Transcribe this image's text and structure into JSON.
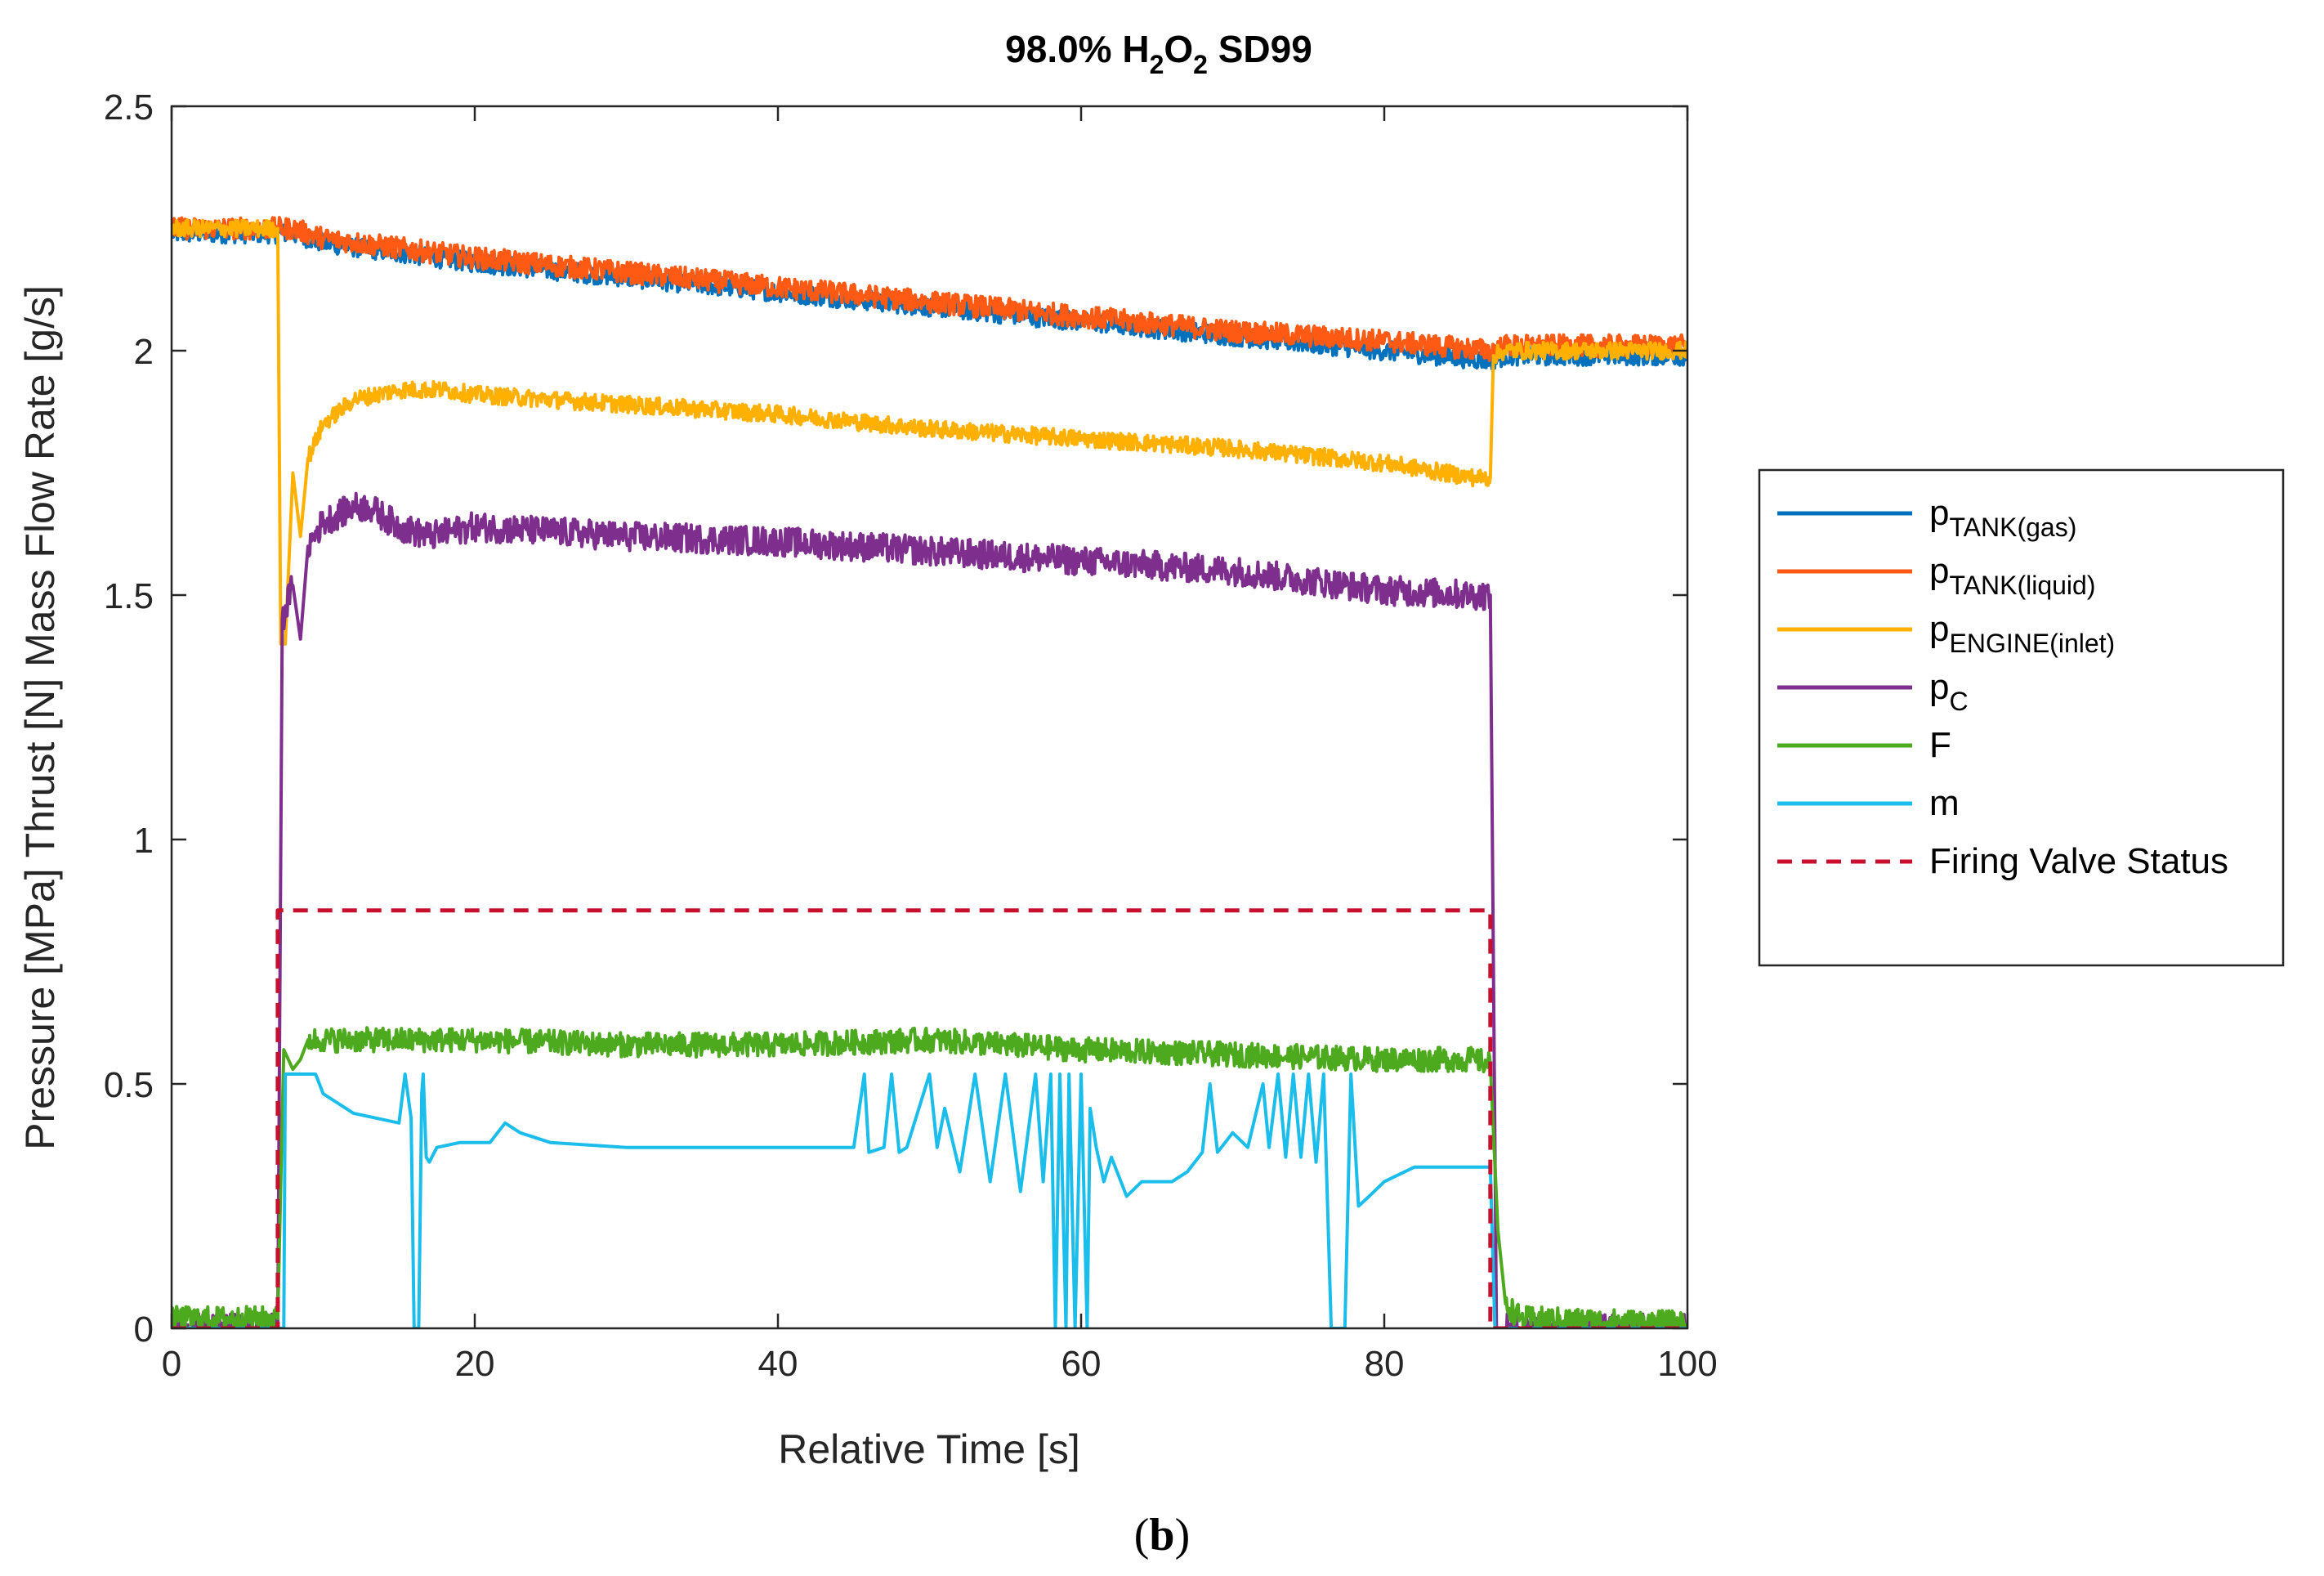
{
  "figure": {
    "caption_open": "(",
    "caption_letter": "b",
    "caption_close": ")"
  },
  "chart_data": {
    "type": "line",
    "title": {
      "prefix": "98.0% H",
      "sub1": "2",
      "mid": "O",
      "sub2": "2",
      "suffix": " SD99"
    },
    "xlabel": "Relative Time [s]",
    "ylabel": "Pressure [MPa] Thrust [N] Mass Flow Rate [g/s]",
    "xlim": [
      0,
      100
    ],
    "ylim": [
      0,
      2.5
    ],
    "xticks": [
      0,
      20,
      40,
      60,
      80,
      100
    ],
    "xtick_labels": [
      "0",
      "20",
      "40",
      "60",
      "80",
      "100"
    ],
    "yticks": [
      0,
      0.5,
      1,
      1.5,
      2,
      2.5
    ],
    "ytick_labels": [
      "0",
      "0.5",
      "1",
      "1.5",
      "2",
      "2.5"
    ],
    "grid": false,
    "legend_position": "outside-right",
    "series": [
      {
        "id": "p_tank_gas",
        "legend_main": "p",
        "legend_sub": "TANK(gas)",
        "color": "#0072BD",
        "style": "solid",
        "x": [
          0,
          7,
          8,
          10,
          20,
          30,
          40,
          50,
          60,
          70,
          80,
          87,
          88,
          100
        ],
        "y": [
          2.24,
          2.24,
          2.24,
          2.22,
          2.18,
          2.15,
          2.12,
          2.09,
          2.06,
          2.03,
          2.0,
          1.98,
          1.99,
          1.99
        ],
        "noise": 0.008
      },
      {
        "id": "p_tank_liquid",
        "legend_main": "p",
        "legend_sub": "TANK(liquid)",
        "color": "#FF5A14",
        "style": "solid",
        "x": [
          0,
          7,
          8,
          10,
          20,
          30,
          40,
          50,
          60,
          70,
          80,
          87,
          88,
          100
        ],
        "y": [
          2.25,
          2.25,
          2.25,
          2.23,
          2.19,
          2.16,
          2.13,
          2.1,
          2.07,
          2.04,
          2.02,
          2.0,
          2.01,
          2.01
        ],
        "noise": 0.009
      },
      {
        "id": "p_engine_inlet",
        "legend_main": "p",
        "legend_sub": "ENGINE(inlet)",
        "color": "#FFB000",
        "style": "solid",
        "x": [
          0,
          7.0,
          7.2,
          7.5,
          8.0,
          8.5,
          9.0,
          10,
          12,
          15,
          18,
          20,
          30,
          40,
          50,
          60,
          70,
          80,
          86,
          87.0,
          87.2,
          88,
          100
        ],
        "y": [
          2.25,
          2.25,
          1.4,
          1.4,
          1.75,
          1.62,
          1.78,
          1.85,
          1.9,
          1.92,
          1.92,
          1.91,
          1.89,
          1.87,
          1.84,
          1.82,
          1.8,
          1.77,
          1.74,
          1.74,
          1.99,
          2.0,
          2.0
        ],
        "noise": 0.007
      },
      {
        "id": "p_c",
        "legend_main": "p",
        "legend_sub": "C",
        "color": "#7E2F8E",
        "style": "solid",
        "x": [
          0,
          7.0,
          7.3,
          8.0,
          8.5,
          9.0,
          10,
          12,
          13,
          15,
          17,
          20,
          30,
          40,
          50,
          60,
          70,
          80,
          86,
          87.0,
          87.4,
          88,
          100
        ],
        "y": [
          0.0,
          0.0,
          1.45,
          1.52,
          1.41,
          1.6,
          1.65,
          1.68,
          1.68,
          1.64,
          1.62,
          1.64,
          1.62,
          1.61,
          1.59,
          1.57,
          1.55,
          1.51,
          1.5,
          1.5,
          0.0,
          0.0,
          0.0
        ],
        "noise": 0.012
      },
      {
        "id": "f",
        "legend_main": "F",
        "legend_sub": "",
        "color": "#4DAA1F",
        "style": "solid",
        "x": [
          0,
          7.0,
          7.4,
          8.0,
          8.5,
          9.0,
          10,
          20,
          30,
          40,
          50,
          60,
          70,
          80,
          86,
          87.0,
          87.5,
          88,
          89,
          100
        ],
        "y": [
          0.02,
          0.02,
          0.57,
          0.53,
          0.55,
          0.59,
          0.59,
          0.59,
          0.58,
          0.58,
          0.59,
          0.57,
          0.56,
          0.55,
          0.55,
          0.54,
          0.2,
          0.05,
          0.02,
          0.01
        ],
        "noise": 0.01
      },
      {
        "id": "m",
        "legend_main": "m",
        "legend_sub": "",
        "color": "#1BBDEB",
        "style": "solid",
        "x": [
          0,
          7.4,
          7.5,
          9.5,
          10,
          12,
          15,
          15.4,
          15.8,
          16.0,
          16.1,
          16.3,
          16.5,
          16.6,
          16.8,
          17,
          17.5,
          19,
          21,
          22,
          23,
          25,
          30,
          40,
          45,
          45.7,
          46,
          47,
          47.5,
          48,
          48.5,
          50,
          50.5,
          51,
          52,
          53,
          54,
          55,
          56,
          57,
          57.5,
          58,
          58.3,
          58.6,
          59,
          59.2,
          59.6,
          60,
          60.4,
          60.6,
          61,
          61.5,
          62,
          63,
          64,
          66,
          67,
          68,
          68.5,
          69,
          69.5,
          70,
          71,
          72,
          72.4,
          73,
          73.5,
          74,
          74.5,
          75,
          75.5,
          76,
          76.5,
          77,
          77.4,
          77.8,
          78.3,
          79,
          80,
          82,
          84,
          86,
          87,
          87.3,
          100
        ],
        "y": [
          0.0,
          0.0,
          0.52,
          0.52,
          0.48,
          0.44,
          0.42,
          0.52,
          0.43,
          0.0,
          0.0,
          0.0,
          0.48,
          0.52,
          0.35,
          0.34,
          0.37,
          0.38,
          0.38,
          0.42,
          0.4,
          0.38,
          0.37,
          0.37,
          0.37,
          0.52,
          0.36,
          0.37,
          0.52,
          0.36,
          0.37,
          0.52,
          0.37,
          0.45,
          0.32,
          0.52,
          0.3,
          0.52,
          0.28,
          0.52,
          0.3,
          0.52,
          0.0,
          0.52,
          0.0,
          0.52,
          0.0,
          0.52,
          0.0,
          0.45,
          0.37,
          0.3,
          0.35,
          0.27,
          0.3,
          0.3,
          0.32,
          0.36,
          0.5,
          0.36,
          0.38,
          0.4,
          0.37,
          0.5,
          0.37,
          0.52,
          0.35,
          0.52,
          0.35,
          0.52,
          0.34,
          0.52,
          0.0,
          0.0,
          0.0,
          0.52,
          0.25,
          0.27,
          0.3,
          0.33,
          0.33,
          0.33,
          0.33,
          0.0,
          0.0
        ],
        "noise": 0
      },
      {
        "id": "firing_valve_status",
        "legend_main": "Firing Valve Status",
        "legend_sub": "",
        "color": "#C8102E",
        "style": "dashed",
        "x": [
          0,
          7.0,
          7.0,
          87.0,
          87.0,
          100
        ],
        "y": [
          0.0,
          0.0,
          0.855,
          0.855,
          0.0,
          0.0
        ],
        "noise": 0
      }
    ]
  }
}
